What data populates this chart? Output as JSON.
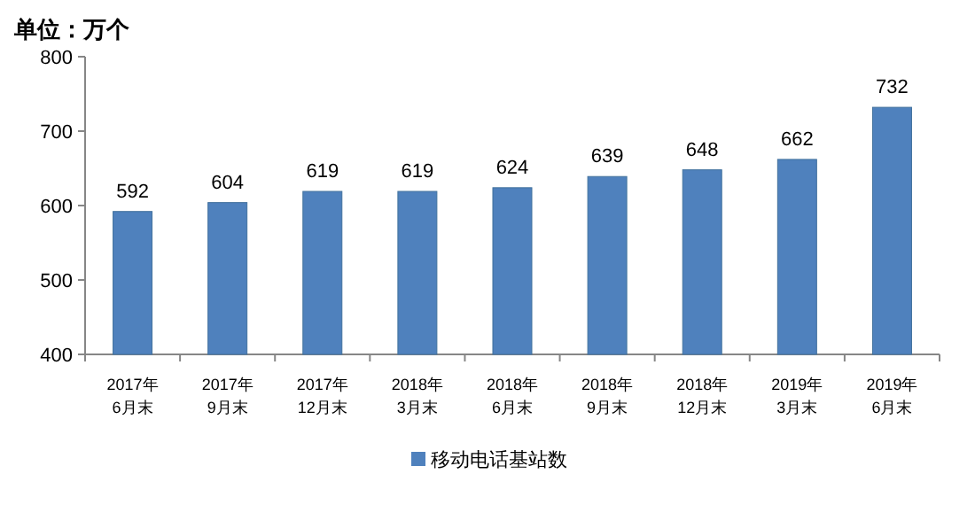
{
  "chart_data": {
    "type": "bar",
    "ylabel": "单位：万个",
    "categories": [
      "2017年\n6月末",
      "2017年\n9月末",
      "2017年\n12月末",
      "2018年\n3月末",
      "2018年\n6月末",
      "2018年\n9月末",
      "2018年\n12月末",
      "2019年\n3月末",
      "2019年\n6月末"
    ],
    "series": [
      {
        "name": "移动电话基站数",
        "color": "#4f81bd",
        "values": [
          592,
          604,
          619,
          619,
          624,
          639,
          648,
          662,
          732
        ]
      }
    ],
    "ylim": [
      400,
      800
    ],
    "yticks": [
      400,
      500,
      600,
      700,
      800
    ],
    "data_labels": true,
    "legend": "bottom",
    "grid": false
  }
}
